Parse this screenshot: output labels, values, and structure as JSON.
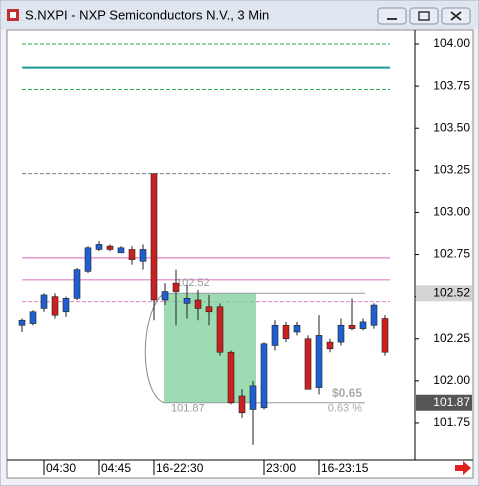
{
  "window": {
    "title": "S.NXPI - NXP Semiconductors N.V., 3 Min"
  },
  "chart_data": {
    "type": "candlestick",
    "categories": [
      null,
      null,
      "04:30",
      null,
      null,
      null,
      null,
      "04:45",
      null,
      null,
      null,
      null,
      "16-22:30",
      null,
      null,
      null,
      null,
      null,
      null,
      null,
      null,
      null,
      "23:00",
      null,
      null,
      null,
      null,
      "16-23:15",
      null,
      null,
      null,
      null,
      null,
      null
    ],
    "open": [
      102.33,
      102.34,
      102.43,
      102.5,
      102.41,
      102.49,
      102.65,
      102.78,
      102.8,
      102.76,
      102.78,
      102.71,
      103.23,
      102.48,
      102.58,
      102.46,
      102.48,
      102.44,
      102.44,
      102.17,
      101.91,
      101.83,
      101.84,
      102.21,
      102.33,
      102.29,
      102.25,
      101.96,
      102.23,
      102.23,
      102.33,
      102.31,
      102.33,
      102.37
    ],
    "high": [
      102.37,
      102.42,
      102.52,
      102.52,
      102.5,
      102.67,
      102.8,
      102.83,
      102.81,
      102.8,
      102.8,
      102.81,
      103.23,
      102.58,
      102.66,
      102.57,
      102.54,
      102.51,
      102.46,
      102.18,
      101.95,
      102.0,
      102.23,
      102.36,
      102.35,
      102.35,
      102.27,
      102.39,
      102.25,
      102.37,
      102.49,
      102.37,
      102.46,
      102.39
    ],
    "low": [
      102.29,
      102.33,
      102.41,
      102.37,
      102.38,
      102.48,
      102.64,
      102.77,
      102.77,
      102.76,
      102.69,
      102.66,
      102.36,
      102.45,
      102.33,
      102.37,
      102.36,
      102.33,
      102.15,
      101.86,
      101.78,
      101.62,
      101.83,
      102.18,
      102.23,
      102.27,
      101.95,
      101.92,
      102.17,
      102.21,
      102.3,
      102.3,
      102.31,
      102.15
    ],
    "close": [
      102.36,
      102.41,
      102.51,
      102.39,
      102.49,
      102.66,
      102.79,
      102.81,
      102.78,
      102.79,
      102.72,
      102.78,
      102.48,
      102.53,
      102.53,
      102.49,
      102.43,
      102.41,
      102.17,
      101.87,
      101.81,
      101.97,
      102.22,
      102.33,
      102.25,
      102.33,
      101.95,
      102.27,
      102.19,
      102.33,
      102.31,
      102.35,
      102.45,
      102.17
    ],
    "up_color": "#1f5fd0",
    "down_color": "#cc2020",
    "ylim": [
      101.53,
      104.095
    ],
    "yticks": [
      {
        "value": 104,
        "label": "104.00"
      },
      103.75,
      {
        "value": 103.5,
        "label": "103.50"
      },
      103.25,
      {
        "value": 103,
        "label": "103.00"
      },
      102.75,
      {
        "value": 102.5,
        "label": "102.50"
      },
      102.25,
      {
        "value": 102,
        "label": "102.00"
      },
      101.75
    ],
    "lines": [
      {
        "value": 104.0,
        "color": "#2eaa55",
        "style": "dashed"
      },
      {
        "value": 103.86,
        "color": "#1a9a9a",
        "style": "solid"
      },
      {
        "value": 103.73,
        "color": "#2eaa55",
        "style": "dashed"
      },
      {
        "value": 103.23,
        "color": "#808080",
        "style": "dashed"
      },
      {
        "value": 102.73,
        "color": "#e080c8",
        "style": "solid"
      },
      {
        "value": 102.6,
        "color": "#e080c8",
        "style": "solid"
      },
      {
        "value": 102.47,
        "color": "#e080c8",
        "style": "dashed"
      }
    ],
    "price_tags": [
      {
        "value": 102.52,
        "background": "#d4d4d4",
        "text_color": "#000000"
      },
      {
        "value": 101.87,
        "background": "#555555",
        "text_color": "#ffffff"
      }
    ],
    "measure": {
      "start": 102.52,
      "end": 101.87,
      "change_label": "$0.65",
      "percent_label": "0.63 %",
      "color": "#7ccf98"
    }
  }
}
